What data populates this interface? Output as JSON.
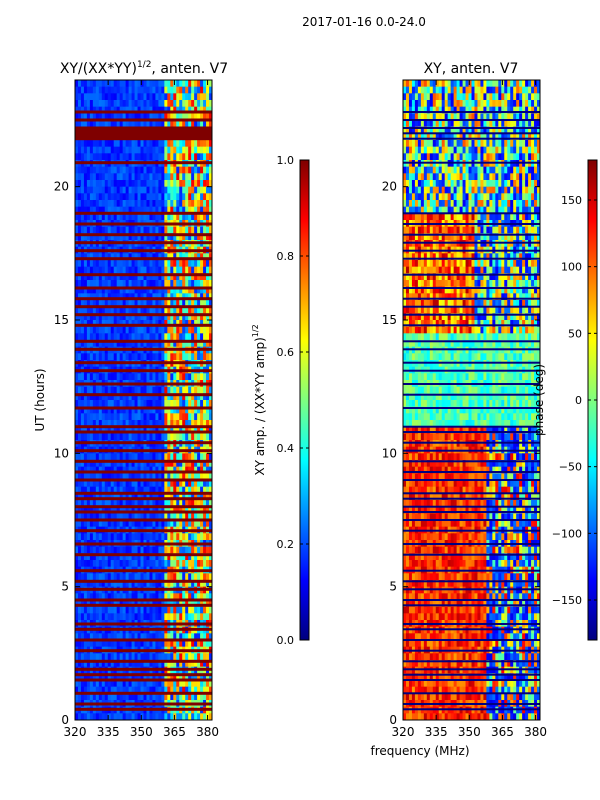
{
  "figure": {
    "suptitle": "2017-01-16 0.0-24.0",
    "xlabel": "frequency (MHz)"
  },
  "colors": {
    "jet": [
      "#00007f",
      "#0000ff",
      "#007fff",
      "#00ffff",
      "#7fff7f",
      "#ffff00",
      "#ff7f00",
      "#ff0000",
      "#7f0000"
    ]
  },
  "chart_data": [
    {
      "type": "heatmap",
      "title_main": "XY/(XX*YY)",
      "title_sup": "1/2",
      "title_suffix": ", anten. V7",
      "ylabel": "UT (hours)",
      "xlim": [
        320,
        382
      ],
      "ylim": [
        0,
        24
      ],
      "xticks": [
        320,
        335,
        350,
        365,
        380
      ],
      "yticks": [
        0,
        5,
        10,
        15,
        20
      ],
      "flagged_bands_hours": [
        0.4,
        0.6,
        1.0,
        1.5,
        1.7,
        1.9,
        2.2,
        2.6,
        3.0,
        3.4,
        3.6,
        4.3,
        4.5,
        4.9,
        5.2,
        5.6,
        6.2,
        6.6,
        7.1,
        7.5,
        7.8,
        8.0,
        8.3,
        8.5,
        9.0,
        9.3,
        9.7,
        10.1,
        10.4,
        10.8,
        11.0,
        11.7,
        12.2,
        12.6,
        13.1,
        13.4,
        13.9,
        14.2,
        14.8,
        15.2,
        15.5,
        15.8,
        16.2,
        16.7,
        17.3,
        17.6,
        17.9,
        18.2,
        18.6,
        19.0,
        20.9,
        21.8,
        22.0,
        22.2,
        22.5,
        22.8
      ],
      "colorbar": {
        "label_main": "XY amp. / (XX*YY amp)",
        "label_sup": "1/2",
        "range": [
          0.0,
          1.0
        ],
        "ticks": [
          "0.0",
          "0.2",
          "0.4",
          "0.6",
          "0.8",
          "1.0"
        ]
      }
    },
    {
      "type": "heatmap",
      "title": "XY, anten. V7",
      "xlim": [
        320,
        382
      ],
      "ylim": [
        0,
        24
      ],
      "xticks": [
        320,
        335,
        350,
        365,
        380
      ],
      "yticks": [
        0,
        5,
        10,
        15,
        20
      ],
      "colorbar": {
        "label": "phase (deg)",
        "range": [
          -180,
          180
        ],
        "ticks": [
          "−150",
          "−100",
          "−50",
          "0",
          "50",
          "100",
          "150"
        ]
      }
    }
  ]
}
